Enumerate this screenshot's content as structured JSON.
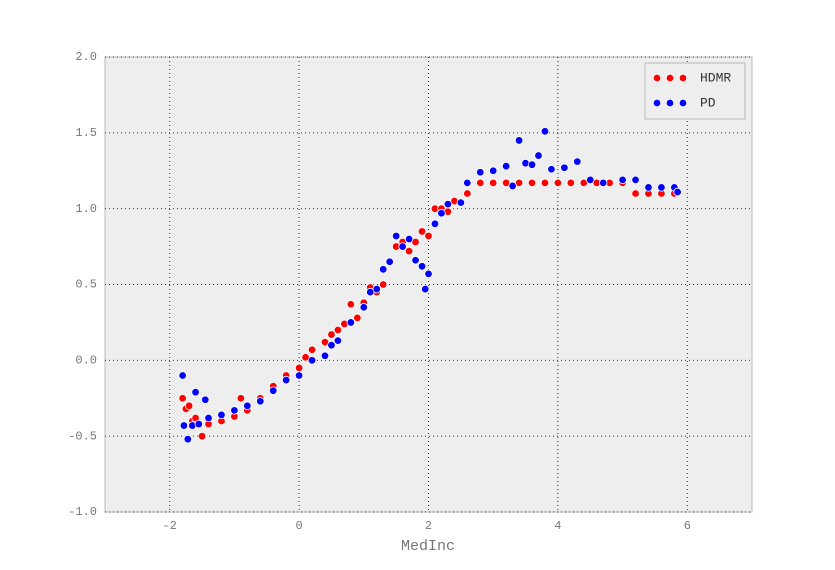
{
  "chart_data": {
    "type": "scatter",
    "xlabel": "MedInc",
    "xlim": [
      -3,
      7
    ],
    "xticks": [
      -2,
      0,
      2,
      4,
      6
    ],
    "ylim": [
      -1,
      2
    ],
    "yticks": [
      {
        "value": -1,
        "label": "-1.0"
      },
      {
        "value": -0.5,
        "label": "-0.5"
      },
      {
        "value": 0,
        "label": "0.0"
      },
      {
        "value": 0.5,
        "label": "0.5"
      },
      {
        "value": 1,
        "label": "1.0"
      },
      {
        "value": 1.5,
        "label": "1.5"
      },
      {
        "value": 2,
        "label": "2.0"
      }
    ],
    "grid": true,
    "legend": "upper right",
    "series": [
      {
        "name": "HDMR",
        "color": "#ff0000",
        "x": [
          -1.8,
          -1.75,
          -1.7,
          -1.65,
          -1.6,
          -1.5,
          -1.4,
          -1.2,
          -1.0,
          -0.9,
          -0.8,
          -0.6,
          -0.4,
          -0.2,
          0,
          0.1,
          0.2,
          0.4,
          0.5,
          0.6,
          0.7,
          0.8,
          0.9,
          1.0,
          1.1,
          1.2,
          1.3,
          1.4,
          1.5,
          1.6,
          1.7,
          1.8,
          1.9,
          2.0,
          2.1,
          2.2,
          2.3,
          2.4,
          2.6,
          2.8,
          3.0,
          3.2,
          3.4,
          3.6,
          3.8,
          4.0,
          4.2,
          4.4,
          4.6,
          4.8,
          5.0,
          5.2,
          5.4,
          5.6,
          5.8
        ],
        "values": [
          -0.25,
          -0.32,
          -0.3,
          -0.4,
          -0.38,
          -0.5,
          -0.42,
          -0.4,
          -0.37,
          -0.25,
          -0.33,
          -0.25,
          -0.17,
          -0.1,
          -0.05,
          0.02,
          0.07,
          0.12,
          0.17,
          0.2,
          0.24,
          0.37,
          0.28,
          0.38,
          0.48,
          0.45,
          0.5,
          0.65,
          0.75,
          0.78,
          0.72,
          0.78,
          0.85,
          0.82,
          1.0,
          1.0,
          0.98,
          1.05,
          1.1,
          1.17,
          1.17,
          1.17,
          1.17,
          1.17,
          1.17,
          1.17,
          1.17,
          1.17,
          1.17,
          1.17,
          1.17,
          1.1,
          1.1,
          1.1,
          1.1
        ]
      },
      {
        "name": "PD",
        "color": "#0000ff",
        "x": [
          -1.8,
          -1.78,
          -1.72,
          -1.65,
          -1.6,
          -1.55,
          -1.45,
          -1.4,
          -1.2,
          -1.0,
          -0.8,
          -0.6,
          -0.4,
          -0.2,
          0,
          0.2,
          0.4,
          0.5,
          0.6,
          0.8,
          1.0,
          1.1,
          1.2,
          1.3,
          1.4,
          1.5,
          1.6,
          1.7,
          1.8,
          1.9,
          1.95,
          2.0,
          2.1,
          2.2,
          2.3,
          2.5,
          2.6,
          2.8,
          3.0,
          3.2,
          3.3,
          3.4,
          3.5,
          3.6,
          3.7,
          3.8,
          3.9,
          4.1,
          4.3,
          4.5,
          4.7,
          5.0,
          5.2,
          5.4,
          5.6,
          5.8,
          5.85
        ],
        "values": [
          -0.1,
          -0.43,
          -0.52,
          -0.43,
          -0.21,
          -0.42,
          -0.26,
          -0.38,
          -0.36,
          -0.33,
          -0.3,
          -0.27,
          -0.2,
          -0.13,
          -0.1,
          0,
          0.03,
          0.1,
          0.13,
          0.25,
          0.35,
          0.45,
          0.47,
          0.6,
          0.65,
          0.82,
          0.75,
          0.8,
          0.66,
          0.62,
          0.47,
          0.57,
          0.9,
          0.97,
          1.03,
          1.04,
          1.17,
          1.24,
          1.25,
          1.28,
          1.15,
          1.45,
          1.3,
          1.29,
          1.35,
          1.51,
          1.26,
          1.27,
          1.31,
          1.19,
          1.17,
          1.19,
          1.19,
          1.14,
          1.14,
          1.14,
          1.11
        ]
      }
    ]
  }
}
